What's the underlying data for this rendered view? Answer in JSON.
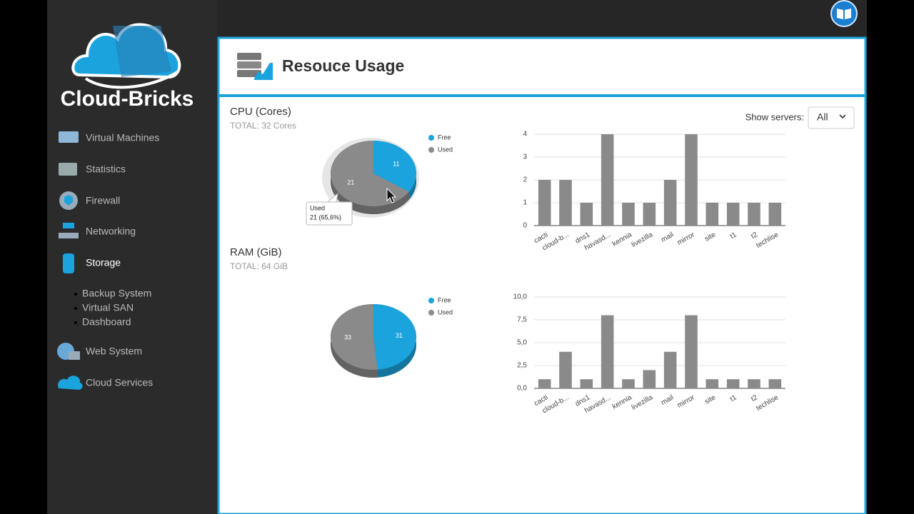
{
  "sidebar": {
    "brand": "Cloud-Bricks",
    "nav": [
      "Virtual Machines",
      "Statistics",
      "Firewall",
      "Networking",
      "Storage",
      "Web System",
      "Cloud Services"
    ],
    "storage_sub": [
      "Backup System",
      "Virtual SAN",
      "Dashboard"
    ]
  },
  "panel": {
    "title": "Resouce Usage",
    "filter_label": "Show servers:",
    "filter_value": "All"
  },
  "sections": [
    {
      "title": "CPU (Cores)",
      "total": "TOTAL: 32 Cores"
    },
    {
      "title": "RAM (GiB)",
      "total": "TOTAL: 64 GiB"
    }
  ],
  "chart_data": [
    {
      "type": "pie",
      "categories": [
        "Free",
        "Used"
      ],
      "values": [
        11,
        21
      ],
      "colors": [
        "#1aa3dc",
        "#8a8a8a"
      ],
      "tooltip": {
        "title": "Used",
        "label": "21 (65,6%)"
      }
    },
    {
      "type": "bar",
      "categories": [
        "cacti",
        "cloud-b...",
        "dns1",
        "havasd...",
        "kennia",
        "livezilla",
        "mail",
        "mirror",
        "site",
        "t1",
        "t2",
        "techlise"
      ],
      "values": [
        2,
        2,
        1,
        4,
        1,
        1,
        2,
        4,
        1,
        1,
        1,
        1
      ],
      "color": "#8a8a8a",
      "ylim": [
        0,
        4
      ],
      "yticks": [
        0,
        1,
        2,
        3,
        4
      ],
      "grid": true
    },
    {
      "type": "pie",
      "categories": [
        "Free",
        "Used"
      ],
      "values": [
        31,
        33
      ],
      "colors": [
        "#1aa3dc",
        "#8a8a8a"
      ]
    },
    {
      "type": "bar",
      "categories": [
        "cacti",
        "cloud-b...",
        "dns1",
        "havasd...",
        "kennia",
        "livezilla",
        "mail",
        "mirror",
        "site",
        "t1",
        "t2",
        "techlise"
      ],
      "values": [
        1,
        4,
        1,
        8,
        1,
        2,
        4,
        8,
        1,
        1,
        1,
        1
      ],
      "color": "#8a8a8a",
      "ylim": [
        0,
        10
      ],
      "yticks": [
        {
          "value": 0,
          "label": "0,0"
        },
        {
          "value": 2.5,
          "label": "2,5"
        },
        {
          "value": 5,
          "label": "5,0"
        },
        {
          "value": 7.5,
          "label": "7,5"
        },
        {
          "value": 10,
          "label": "10,0"
        }
      ],
      "grid": true
    }
  ]
}
